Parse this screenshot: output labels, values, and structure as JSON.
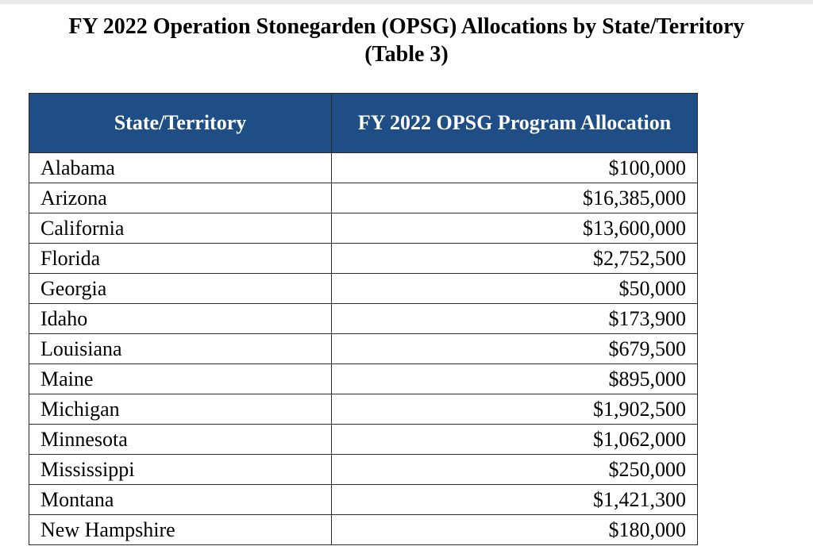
{
  "title": {
    "line1": "FY 2022 Operation Stonegarden (OPSG) Allocations by State/Territory",
    "line2": "(Table 3)"
  },
  "table": {
    "headers": [
      "State/Territory",
      "FY 2022 OPSG Program Allocation"
    ],
    "rows": [
      [
        "Alabama",
        "$100,000"
      ],
      [
        "Arizona",
        "$16,385,000"
      ],
      [
        "California",
        "$13,600,000"
      ],
      [
        "Florida",
        "$2,752,500"
      ],
      [
        "Georgia",
        "$50,000"
      ],
      [
        "Idaho",
        "$173,900"
      ],
      [
        "Louisiana",
        "$679,500"
      ],
      [
        "Maine",
        "$895,000"
      ],
      [
        "Michigan",
        "$1,902,500"
      ],
      [
        "Minnesota",
        "$1,062,000"
      ],
      [
        "Mississippi",
        "$250,000"
      ],
      [
        "Montana",
        "$1,421,300"
      ],
      [
        "New Hampshire",
        "$180,000"
      ]
    ]
  }
}
